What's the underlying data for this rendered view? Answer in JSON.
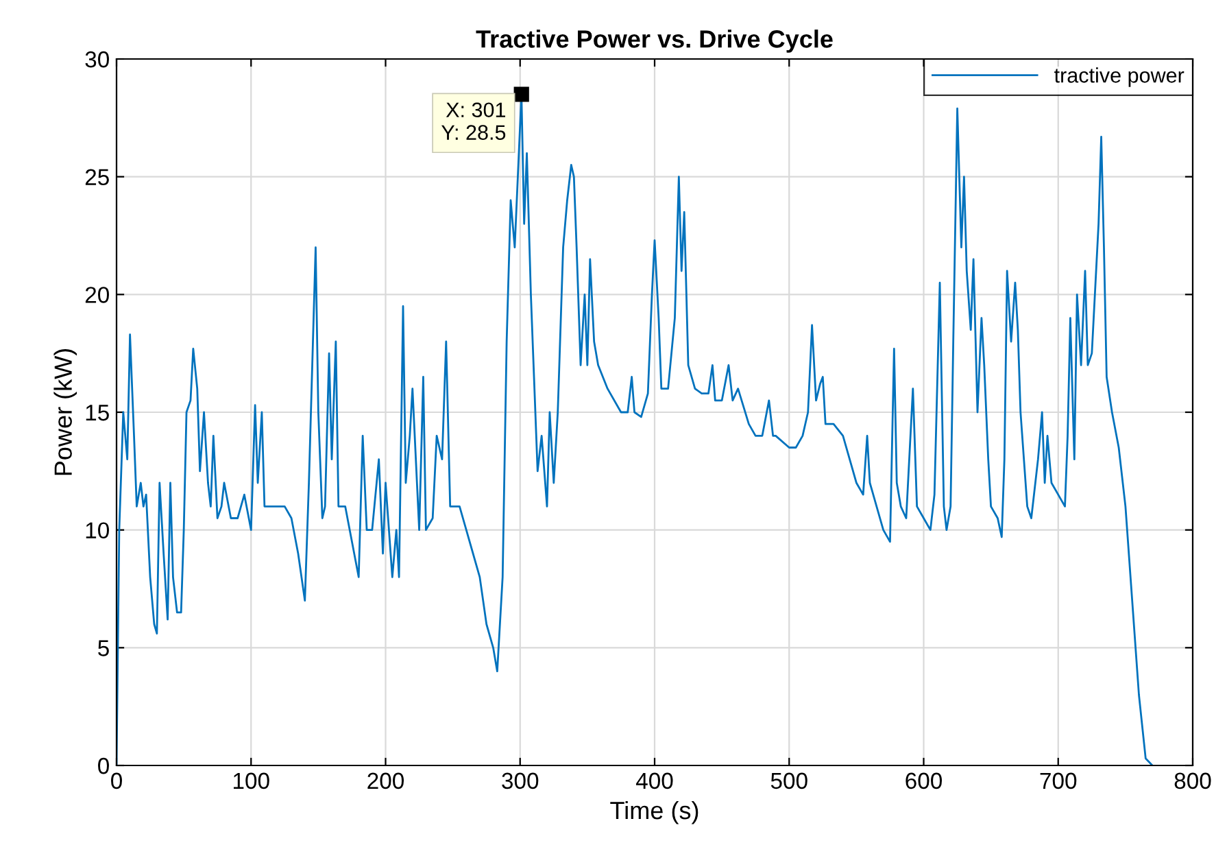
{
  "chart_data": {
    "type": "line",
    "title": "Tractive Power vs. Drive Cycle",
    "xlabel": "Time (s)",
    "ylabel": "Power (kW)",
    "xlim": [
      0,
      800
    ],
    "ylim": [
      0,
      30
    ],
    "xticks": [
      0,
      100,
      200,
      300,
      400,
      500,
      600,
      700,
      800
    ],
    "yticks": [
      0,
      5,
      10,
      15,
      20,
      25,
      30
    ],
    "grid": true,
    "legend": "top right",
    "annotations": [
      {
        "text": "X: 301\nY: 28.5",
        "x": 301,
        "y": 28.5
      }
    ],
    "series": [
      {
        "name": "tractive power",
        "color": "#0072bd",
        "x": [
          0,
          2,
          5,
          8,
          10,
          13,
          15,
          18,
          20,
          22,
          25,
          28,
          30,
          32,
          35,
          38,
          40,
          42,
          45,
          48,
          50,
          52,
          55,
          57,
          60,
          62,
          65,
          68,
          70,
          72,
          75,
          78,
          80,
          85,
          90,
          95,
          100,
          103,
          105,
          108,
          110,
          120,
          125,
          130,
          135,
          140,
          143,
          146,
          148,
          150,
          153,
          155,
          158,
          160,
          163,
          165,
          170,
          175,
          180,
          183,
          186,
          190,
          195,
          198,
          200,
          205,
          208,
          210,
          213,
          215,
          218,
          220,
          225,
          228,
          230,
          235,
          238,
          242,
          245,
          248,
          255,
          260,
          265,
          270,
          275,
          280,
          283,
          287,
          290,
          293,
          296,
          301,
          303,
          305,
          308,
          310,
          313,
          316,
          320,
          322,
          325,
          328,
          332,
          335,
          338,
          340,
          342,
          345,
          348,
          350,
          352,
          355,
          358,
          365,
          375,
          380,
          383,
          385,
          390,
          395,
          398,
          400,
          403,
          405,
          410,
          415,
          418,
          420,
          422,
          425,
          430,
          435,
          440,
          443,
          445,
          450,
          455,
          458,
          462,
          470,
          475,
          480,
          485,
          488,
          490,
          500,
          505,
          510,
          514,
          517,
          520,
          523,
          525,
          527,
          533,
          540,
          550,
          555,
          558,
          560,
          565,
          570,
          575,
          578,
          580,
          583,
          587,
          592,
          595,
          600,
          605,
          608,
          612,
          615,
          617,
          620,
          622,
          625,
          628,
          630,
          632,
          635,
          637,
          640,
          643,
          645,
          648,
          650,
          655,
          658,
          660,
          662,
          665,
          668,
          670,
          672,
          677,
          680,
          685,
          688,
          690,
          692,
          695,
          700,
          705,
          707,
          709,
          712,
          714,
          717,
          720,
          722,
          725,
          730,
          732,
          734,
          736,
          740,
          745,
          750,
          755,
          760,
          765,
          770
        ],
        "values": [
          0,
          10,
          15,
          13,
          18.3,
          14,
          11,
          12,
          11,
          11.5,
          8,
          6,
          5.6,
          12,
          9,
          6.2,
          12,
          8,
          6.5,
          6.5,
          10,
          15,
          15.5,
          17.7,
          16,
          12.5,
          15,
          12,
          11,
          14,
          10.5,
          11,
          12,
          10.5,
          10.5,
          11.5,
          10,
          15.3,
          12,
          15,
          11,
          11,
          11,
          10.5,
          9,
          7,
          12,
          18,
          22,
          15,
          10.5,
          11,
          17.5,
          13,
          18,
          11,
          11,
          9.5,
          8,
          14,
          10,
          10,
          13,
          9,
          12,
          8,
          10,
          8,
          19.5,
          12,
          14,
          16,
          10,
          16.5,
          10,
          10.5,
          14,
          13,
          18,
          11,
          11,
          10,
          9,
          8,
          6,
          5,
          4,
          8,
          18,
          24,
          22,
          28.5,
          23,
          26,
          20,
          17,
          12.5,
          14,
          11,
          15,
          12,
          15,
          22,
          24,
          25.5,
          25,
          22,
          17,
          20,
          17,
          21.5,
          18,
          17,
          16,
          15,
          15,
          16.5,
          15,
          14.8,
          15.8,
          20,
          22.3,
          19,
          16,
          16,
          19,
          25,
          21,
          23.5,
          17,
          16,
          15.8,
          15.8,
          17,
          15.5,
          15.5,
          17,
          15.5,
          16,
          14.5,
          14,
          14,
          15.5,
          14,
          14,
          13.5,
          13.5,
          14,
          15,
          18.7,
          15.5,
          16.2,
          16.5,
          14.5,
          14.5,
          14,
          12,
          11.5,
          14,
          12,
          11,
          10,
          9.5,
          17.7,
          12,
          11,
          10.5,
          16,
          11,
          10.5,
          10,
          11.5,
          20.5,
          11,
          10,
          11,
          18,
          27.9,
          22,
          25,
          21,
          18.5,
          21.5,
          15,
          19,
          17,
          13,
          11,
          10.5,
          9.7,
          13,
          21,
          18,
          20.5,
          18.5,
          15,
          11,
          10.5,
          13,
          15,
          12,
          14,
          12,
          11.5,
          11,
          14,
          19,
          13,
          20,
          17,
          21,
          17,
          17.5,
          23,
          26.7,
          22,
          16.5,
          15,
          13.5,
          11,
          7,
          3,
          0.3,
          0
        ]
      }
    ]
  }
}
